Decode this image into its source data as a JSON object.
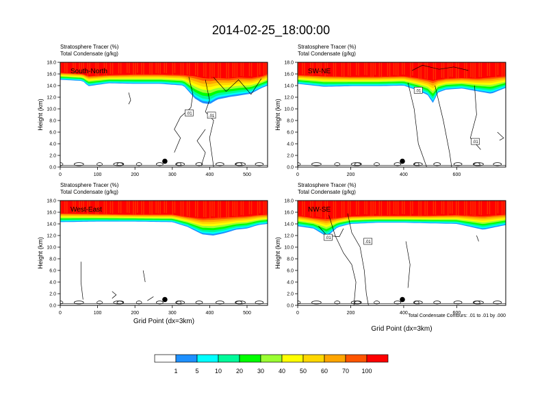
{
  "title": "2014-02-25_18:00:00",
  "colors": {
    "frame": "#000000",
    "contour": "#000000",
    "marker": "#000000",
    "label_text": "#ffffff"
  },
  "footer_note": "Total Condensate Contours: .01 to .01 by .000",
  "chart_data": [
    {
      "type": "heatmap",
      "panel_label": "South-North",
      "title_lines": [
        "Stratosphere Tracer   (%)",
        "Total Condensate   (g/kg)"
      ],
      "xlabel": "",
      "ylabel": "Height (km)",
      "xlim": [
        0,
        555
      ],
      "ylim": [
        0,
        18
      ],
      "xticks": [
        0,
        100,
        200,
        300,
        400,
        500
      ],
      "yticks": [
        0.0,
        2.0,
        4.0,
        6.0,
        8.0,
        10.0,
        12.0,
        14.0,
        16.0,
        18.0
      ],
      "marker": {
        "x": 280,
        "y": 1.0
      },
      "contour_labels": [
        {
          "text": ".01",
          "x": 345,
          "y": 9.3
        },
        {
          "text": ".01",
          "x": 405,
          "y": 8.9
        }
      ],
      "tracer_profile": {
        "x": [
          0,
          60,
          75,
          130,
          200,
          270,
          330,
          360,
          380,
          400,
          420,
          450,
          480,
          510,
          540,
          555
        ],
        "top15": [
          16.2,
          16.0,
          15.6,
          15.8,
          15.9,
          15.9,
          15.8,
          15.6,
          15.3,
          15.2,
          15.3,
          15.2,
          15.4,
          15.3,
          15.6,
          16.0
        ],
        "bottom": [
          15.0,
          14.8,
          13.9,
          14.4,
          14.3,
          14.3,
          14.0,
          11.8,
          11.0,
          10.8,
          11.6,
          12.0,
          12.3,
          12.6,
          13.6,
          14.0
        ]
      }
    },
    {
      "type": "heatmap",
      "panel_label": "SW-NE",
      "title_lines": [
        "Stratosphere Tracer   (%)",
        "Total Condensate   (g/kg)"
      ],
      "xlabel": "",
      "ylabel": "Height (km)",
      "xlim": [
        0,
        785
      ],
      "ylim": [
        0,
        18
      ],
      "xticks": [
        0,
        200,
        400,
        600
      ],
      "yticks": [
        0.0,
        2.0,
        4.0,
        6.0,
        8.0,
        10.0,
        12.0,
        14.0,
        16.0,
        18.0
      ],
      "marker": {
        "x": 395,
        "y": 1.0
      },
      "contour_labels": [
        {
          "text": ".01",
          "x": 455,
          "y": 13.2
        },
        {
          "text": ".01",
          "x": 670,
          "y": 4.4
        }
      ],
      "tracer_profile": {
        "x": [
          0,
          100,
          200,
          300,
          400,
          450,
          490,
          510,
          530,
          560,
          620,
          680,
          730,
          785
        ],
        "top15": [
          15.8,
          15.6,
          15.5,
          15.5,
          15.6,
          15.3,
          15.0,
          14.8,
          15.0,
          15.2,
          15.3,
          15.2,
          15.4,
          15.6
        ],
        "bottom": [
          14.3,
          13.8,
          13.9,
          13.9,
          14.0,
          13.2,
          12.4,
          11.0,
          12.8,
          13.3,
          13.5,
          13.0,
          12.6,
          13.6
        ]
      }
    },
    {
      "type": "heatmap",
      "panel_label": "West-East",
      "title_lines": [
        "Stratosphere Tracer   (%)",
        "Total Condensate   (g/kg)"
      ],
      "xlabel": "Grid Point (dx=3km)",
      "ylabel": "Height (km)",
      "xlim": [
        0,
        555
      ],
      "ylim": [
        0,
        18
      ],
      "xticks": [
        0,
        100,
        200,
        300,
        400,
        500
      ],
      "yticks": [
        0.0,
        2.0,
        4.0,
        6.0,
        8.0,
        10.0,
        12.0,
        14.0,
        16.0,
        18.0
      ],
      "marker": {
        "x": 280,
        "y": 1.0
      },
      "contour_labels": [],
      "tracer_profile": {
        "x": [
          0,
          100,
          200,
          300,
          340,
          380,
          410,
          440,
          470,
          500,
          530,
          555
        ],
        "top15": [
          15.8,
          15.7,
          15.6,
          15.6,
          15.2,
          14.9,
          15.0,
          15.1,
          15.2,
          15.3,
          15.5,
          15.6
        ],
        "bottom": [
          14.3,
          14.4,
          14.4,
          14.3,
          13.5,
          12.2,
          12.0,
          12.4,
          13.0,
          13.2,
          13.8,
          14.0
        ]
      }
    },
    {
      "type": "heatmap",
      "panel_label": "NW-SE",
      "title_lines": [
        "Stratosphere Tracer   (%)",
        "Total Condensate   (g/kg)"
      ],
      "xlabel": "Grid Point (dx=3km)",
      "ylabel": "Height (km)",
      "xlim": [
        0,
        785
      ],
      "ylim": [
        0,
        18
      ],
      "xticks": [
        0,
        200,
        400,
        600
      ],
      "yticks": [
        0.0,
        2.0,
        4.0,
        6.0,
        8.0,
        10.0,
        12.0,
        14.0,
        16.0,
        18.0
      ],
      "marker": {
        "x": 395,
        "y": 1.0
      },
      "contour_labels": [
        {
          "text": ".01",
          "x": 115,
          "y": 11.7
        },
        {
          "text": ".01",
          "x": 265,
          "y": 11.0
        }
      ],
      "tracer_profile": {
        "x": [
          0,
          60,
          110,
          150,
          200,
          300,
          400,
          500,
          600,
          700,
          785
        ],
        "top15": [
          15.4,
          15.0,
          14.8,
          15.0,
          15.3,
          15.4,
          15.4,
          15.4,
          15.5,
          15.3,
          15.6
        ],
        "bottom": [
          13.6,
          13.2,
          11.8,
          13.4,
          14.0,
          14.2,
          14.2,
          14.1,
          14.0,
          13.0,
          13.8
        ]
      }
    }
  ],
  "colorbar": {
    "labels": [
      "1",
      "5",
      "10",
      "20",
      "30",
      "40",
      "50",
      "60",
      "70",
      "100"
    ],
    "colors": [
      "#ffffff",
      "#1e90ff",
      "#00ffff",
      "#00fa9a",
      "#00ff00",
      "#9aff32",
      "#ffff00",
      "#ffd700",
      "#ffa500",
      "#ff5500",
      "#ff0000"
    ]
  }
}
